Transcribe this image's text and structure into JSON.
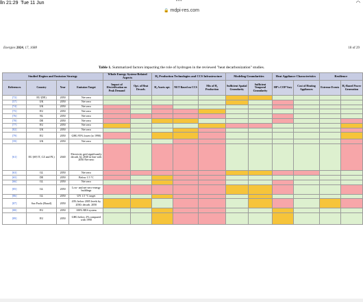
{
  "status": {
    "time": "21:29",
    "date": "Tue 11 Jun",
    "carrier": "lln",
    "dots": "•••",
    "battery": ""
  },
  "browser": {
    "url": "mdpi-res.com"
  },
  "page": {
    "journal": "Energies",
    "year": "2024",
    "volume_info": ", 17, 1688",
    "page_number": "18 of 29"
  },
  "caption": {
    "label": "Table 1.",
    "text": "Summarized factors impacting the role of hydrogen in the reviewed \"heat decarbonization\" studies."
  },
  "table": {
    "groups": [
      {
        "label": "Studied Region and Emission Strategy",
        "span": 4
      },
      {
        "label": "Whole Energy System-Related Aspects",
        "span": 2
      },
      {
        "label": "H₂ Production Technologies and CCS Infrastructure",
        "span": 3
      },
      {
        "label": "Modeling Granularities",
        "span": 2
      },
      {
        "label": "Heat Appliance Characteristics",
        "span": 2
      },
      {
        "label": "Resilience",
        "span": 2
      }
    ],
    "columns": [
      "References",
      "Country",
      "Year",
      "Emission Target",
      "Impact of Electrification on Peak Demand",
      "Opt. of Heat Decarb.",
      "H₂ Assets opt.",
      "NET Based on CCS",
      "Mix of H₂ Production",
      "Sufficient Spatial Granularity",
      "Sufficient Temporal Granularity",
      "HP's COP Vary",
      "Cost of Heating Appliances",
      "Extreme Events",
      "H₂-Based Power Generation"
    ],
    "rows": [
      {
        "ref": "[72]",
        "country": "EU (DE)",
        "year": "2050",
        "target": "Net-zero",
        "h": "h8",
        "cells": "gggggyygggg"
      },
      {
        "ref": "[57]",
        "country": "UK",
        "year": "2050",
        "target": "Net-zero",
        "h": "h8",
        "cells": "gggggygrggg"
      },
      {
        "ref": "[74]",
        "country": "UK",
        "year": "2050",
        "target": "Net-zero",
        "h": "h8",
        "cells": "rgrggggrggg"
      },
      {
        "ref": "[75]",
        "country": "EU",
        "year": "2050",
        "target": "Net-zero",
        "h": "h8",
        "cells": "rgrrygggggg"
      },
      {
        "ref": "[76]",
        "country": "NL",
        "year": "2050",
        "target": "Net-zero",
        "h": "h8",
        "cells": "rrrrrggrggg"
      },
      {
        "ref": "[78]",
        "country": "DE",
        "year": "2050",
        "target": "Net-zero",
        "h": "h8",
        "cells": "rgyygggrggr"
      },
      {
        "ref": "[77]",
        "country": "EU",
        "year": "2050",
        "target": "Net-zero",
        "h": "h8",
        "cells": "ygggyrrgggy"
      },
      {
        "ref": "[82]",
        "country": "UK",
        "year": "2050",
        "target": "Net-zero",
        "h": "h8",
        "cells": "gggyrgggggr"
      },
      {
        "ref": "[79]",
        "country": "EU",
        "year": "2050",
        "target": "GHG 95% lower (to 1990)",
        "h": "h10",
        "cells": "rgyyrgggggy"
      },
      {
        "ref": "[59]",
        "country": "UK",
        "year": "2050",
        "target": "Net-zero",
        "h": "h8",
        "cells": "gggrrgggggr"
      },
      {
        "ref": "[61]",
        "country": "EU (SP, IT, CZ and PL)",
        "year": "2040",
        "target": "Electricity grid significantly decarb. by 2040 in line with 2050 Net-zero",
        "h": "h40",
        "cells": "rgrrrgggggr"
      },
      {
        "ref": "[63]",
        "country": "GL",
        "year": "2050",
        "target": "Net-zero",
        "h": "h8",
        "cells": "rrrrryyrrgg"
      },
      {
        "ref": "[65]",
        "country": "DE",
        "year": "2050",
        "target": "Below 1.5 °C",
        "h": "h8",
        "cells": "rgyrrgggggg"
      },
      {
        "ref": "[66]",
        "country": "GL",
        "year": "2050",
        "target": "Net-zero",
        "h": "h8",
        "cells": "ggyrrggrggg"
      },
      {
        "ref": "[85]",
        "country": "GL",
        "year": "2050",
        "target": "Low- and net-zero-energy buildings",
        "h": "h14",
        "cells": "rrrrryyrggr"
      },
      {
        "ref": "[86]",
        "country": "GL",
        "year": "2050",
        "target": "UN 1.5 °C target",
        "h": "h8",
        "cells": "ggyrrgygggg"
      },
      {
        "ref": "[87]",
        "country": "Sao Paolo (Brazil)",
        "year": "2050",
        "target": "43% below 2005 levels by 2030; decarb. 2050",
        "h": "h14",
        "cells": "yygrrgyrgyr"
      },
      {
        "ref": "[88]",
        "country": "EU",
        "year": "2050",
        "target": "100% RES system",
        "h": "h8",
        "cells": "ggyrrggyggg"
      },
      {
        "ref": "[89]",
        "country": "EU",
        "year": "2050",
        "target": "GHG below 2% compared with 1990",
        "h": "h17",
        "cells": "ggyrrggyggg"
      }
    ]
  },
  "colors": {
    "red": "#f7a6a9",
    "yellow": "#f6c43a",
    "green": "#ddf0cf",
    "header": "#cfd3e6",
    "link": "#2a5bd7"
  }
}
